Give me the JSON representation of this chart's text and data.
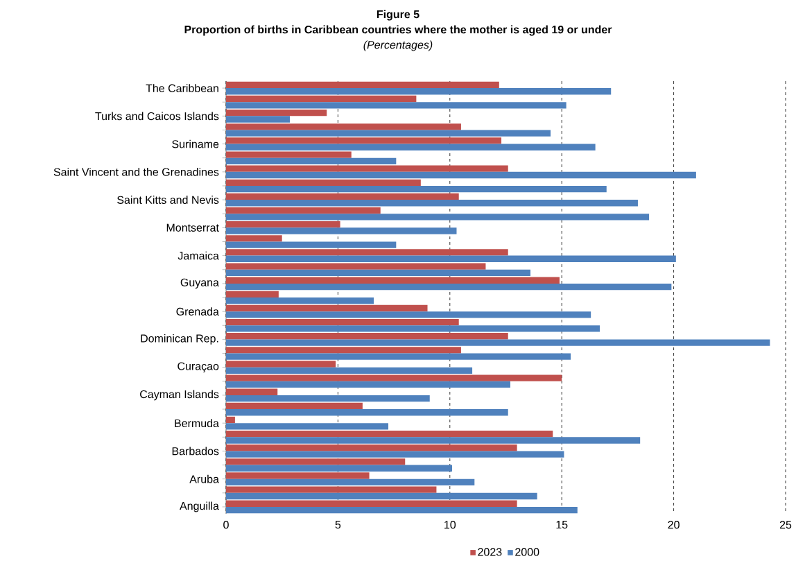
{
  "chart_data": {
    "type": "bar",
    "orientation": "horizontal",
    "title": "Figure 5",
    "subtitle": "Proportion of births in Caribbean countries where the mother is aged 19 or under",
    "annotations": [
      "(Percentages)"
    ],
    "categories": [
      "The Caribbean",
      null,
      "Turks and Caicos Islands",
      null,
      "Suriname",
      null,
      "Saint Vincent and the Grenadines",
      null,
      "Saint Kitts and Nevis",
      null,
      "Montserrat",
      null,
      "Jamaica",
      null,
      "Guyana",
      null,
      "Grenada",
      null,
      "Dominican Rep.",
      null,
      "Curaçao",
      null,
      "Cayman Islands",
      null,
      "Bermuda",
      null,
      "Barbados",
      null,
      "Aruba",
      null,
      "Anguilla"
    ],
    "series": [
      {
        "name": "2023",
        "color": "#c0504d",
        "values": [
          12.2,
          8.5,
          4.5,
          10.5,
          12.3,
          5.6,
          12.6,
          8.7,
          10.4,
          6.9,
          5.1,
          2.5,
          12.6,
          11.6,
          14.9,
          2.35,
          9.0,
          10.4,
          12.6,
          10.5,
          4.9,
          15.0,
          2.3,
          6.1,
          0.4,
          14.6,
          13.0,
          8.0,
          6.4,
          9.4,
          13.0
        ]
      },
      {
        "name": "2000",
        "color": "#4f81bd",
        "values": [
          17.2,
          15.2,
          2.85,
          14.5,
          16.5,
          7.6,
          21.0,
          17.0,
          18.4,
          18.9,
          10.3,
          7.6,
          20.1,
          13.6,
          19.9,
          6.6,
          16.3,
          16.7,
          24.3,
          15.4,
          11.0,
          12.7,
          9.1,
          12.6,
          7.25,
          18.5,
          15.1,
          10.1,
          11.1,
          13.9,
          15.7
        ]
      }
    ],
    "xlim": [
      0,
      25
    ],
    "xticks": [
      0,
      5,
      10,
      15,
      20,
      25
    ],
    "grid": "x",
    "legend": "bottom"
  }
}
